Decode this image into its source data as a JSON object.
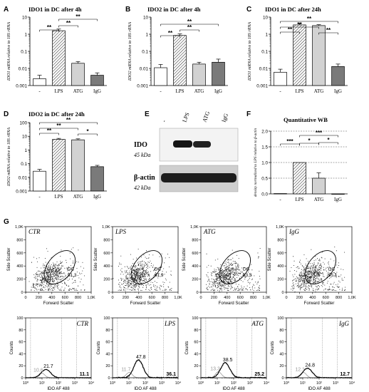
{
  "panels": {
    "A": {
      "letter": "A",
      "title": "IDO1 in DC after 4h"
    },
    "B": {
      "letter": "B",
      "title": "IDO2 in DC after 4h"
    },
    "C": {
      "letter": "C",
      "title": "IDO1 in DC after 24h"
    },
    "D": {
      "letter": "D",
      "title": "IDO2 in DC after 24h"
    },
    "E": {
      "letter": "E"
    },
    "F": {
      "letter": "F",
      "title": "Quantitative WB"
    },
    "G": {
      "letter": "G"
    }
  },
  "western_blot": {
    "lanes": [
      "-",
      "LPS",
      "ATG",
      "IgG"
    ],
    "rows": [
      {
        "label": "IDO",
        "size": "45 kDa"
      },
      {
        "label": "β-actin",
        "size": "42 kDa"
      }
    ]
  },
  "chart_data": [
    {
      "type": "bar",
      "panel": "A",
      "title": "IDO1 in DC after 4h",
      "ylabel": "IDO1 mRNA relative to 18S rRNA",
      "yscale": "log",
      "ylim": [
        0.001,
        10
      ],
      "yticks": [
        "0.001",
        "0.01",
        "0.1",
        "1",
        "10"
      ],
      "categories": [
        "-",
        "LPS",
        "ATG",
        "IgG"
      ],
      "values": [
        0.0025,
        1.6,
        0.02,
        0.004
      ],
      "errors": [
        0.0015,
        0.4,
        0.005,
        0.0015
      ],
      "significance": [
        {
          "from": "-",
          "to": "LPS",
          "label": "**"
        },
        {
          "from": "LPS",
          "to": "ATG",
          "label": "**"
        },
        {
          "from": "LPS",
          "to": "IgG",
          "label": "**"
        }
      ]
    },
    {
      "type": "bar",
      "panel": "B",
      "title": "IDO2 in DC after 4h",
      "ylabel": "IDO2 mRNA relative to 18S rRNA",
      "yscale": "log",
      "ylim": [
        0.001,
        10
      ],
      "yticks": [
        "0.001",
        "0.01",
        "0.1",
        "1",
        "10"
      ],
      "categories": [
        "-",
        "LPS",
        "ATG",
        "IgG"
      ],
      "values": [
        0.011,
        0.85,
        0.018,
        0.023
      ],
      "errors": [
        0.006,
        0.2,
        0.005,
        0.012
      ],
      "significance": [
        {
          "from": "-",
          "to": "LPS",
          "label": "**"
        },
        {
          "from": "LPS",
          "to": "ATG",
          "label": "**"
        },
        {
          "from": "-",
          "to": "IgG",
          "label": "**"
        }
      ]
    },
    {
      "type": "bar",
      "panel": "C",
      "title": "IDO1 in DC after 24h",
      "ylabel": "IDO1 mRNA relative to 18S rRNA",
      "yscale": "log",
      "ylim": [
        0.001,
        10
      ],
      "yticks": [
        "0.001",
        "0.01",
        "0.1",
        "1",
        "10"
      ],
      "categories": [
        "-",
        "LPS",
        "ATG",
        "IgG"
      ],
      "values": [
        0.006,
        3.5,
        3.2,
        0.013
      ],
      "errors": [
        0.003,
        0.8,
        0.4,
        0.005
      ],
      "significance": [
        {
          "from": "-",
          "to": "LPS",
          "label": "**"
        },
        {
          "from": "-",
          "to": "ATG",
          "label": "**"
        },
        {
          "from": "ATG",
          "to": "IgG",
          "label": "**"
        },
        {
          "from": "-",
          "to": "IgG",
          "label": "**"
        }
      ]
    },
    {
      "type": "bar",
      "panel": "D",
      "title": "IDO2 in DC after 24h",
      "ylabel": "IDO2 mRNA relative to 18S rRNA",
      "yscale": "log",
      "ylim": [
        0.001,
        100
      ],
      "yticks": [
        "0.001",
        "0.01",
        "0.1",
        "1",
        "10",
        "100"
      ],
      "categories": [
        "-",
        "LPS",
        "ATG",
        "IgG"
      ],
      "values": [
        0.028,
        6.0,
        5.5,
        0.06
      ],
      "errors": [
        0.01,
        1.0,
        1.0,
        0.015
      ],
      "significance": [
        {
          "from": "-",
          "to": "LPS",
          "label": "**"
        },
        {
          "from": "-",
          "to": "ATG",
          "label": "**"
        },
        {
          "from": "ATG",
          "to": "IgG",
          "label": "*"
        },
        {
          "from": "-",
          "to": "IgG",
          "label": "**"
        }
      ]
    },
    {
      "type": "bar",
      "panel": "F",
      "title": "Quantitative WB",
      "ylabel": "density normalized to LPS relative to β-actin",
      "yscale": "linear",
      "ylim": [
        0,
        2.0
      ],
      "yticks": [
        "0.0",
        "0.5",
        "1.0",
        "1.5",
        "2.0"
      ],
      "categories": [
        "-",
        "LPS",
        "ATG",
        "IgG"
      ],
      "values": [
        0.01,
        1.0,
        0.5,
        0.0
      ],
      "errors": [
        0.0,
        0.0,
        0.17,
        0.0
      ],
      "grid": "dashed horizontal",
      "significance": [
        {
          "from": "-",
          "to": "LPS",
          "label": "***"
        },
        {
          "from": "LPS",
          "to": "ATG",
          "label": "*"
        },
        {
          "from": "ATG",
          "to": "IgG",
          "label": "*"
        },
        {
          "from": "LPS",
          "to": "IgG",
          "label": "***"
        }
      ]
    },
    {
      "type": "scatter",
      "panel": "G",
      "xlabel": "Forward Scatter",
      "ylabel": "Side Scatter",
      "xlim": [
        0,
        1000
      ],
      "ylim": [
        0,
        1000
      ],
      "xticks": [
        "0",
        "200",
        "400",
        "600",
        "800",
        "1,0K"
      ],
      "yticks": [
        "0",
        "200",
        "400",
        "600",
        "800",
        "1,0K"
      ],
      "gate_label": "DC",
      "plots": [
        {
          "condition": "CTR",
          "gate_percent": "51,3"
        },
        {
          "condition": "LPS",
          "gate_percent": "61,9"
        },
        {
          "condition": "ATG",
          "gate_percent": "63,3"
        },
        {
          "condition": "IgG",
          "gate_percent": "55,1"
        }
      ]
    },
    {
      "type": "line",
      "panel": "G",
      "xlabel": "IDO AF 488",
      "ylabel": "Counts",
      "xscale": "log",
      "ylim": [
        0,
        100
      ],
      "yticks": [
        "0",
        "20",
        "40",
        "60",
        "80",
        "100"
      ],
      "xticks": [
        "10⁰",
        "10¹",
        "10²",
        "10³",
        "10⁴"
      ],
      "plots": [
        {
          "condition": "CTR",
          "isotype_mfi": "10.6",
          "stained_mfi": "21.7",
          "percent_positive": "11.1",
          "iso_peak": 8,
          "stain_peak": 14
        },
        {
          "condition": "LPS",
          "isotype_mfi": "11.7",
          "stained_mfi": "47.8",
          "percent_positive": "36.1",
          "iso_peak": 9,
          "stain_peak": 30
        },
        {
          "condition": "ATG",
          "isotype_mfi": "13.3",
          "stained_mfi": "38.5",
          "percent_positive": "25.2",
          "iso_peak": 10,
          "stain_peak": 25
        },
        {
          "condition": "IgG",
          "isotype_mfi": "12.1",
          "stained_mfi": "24.8",
          "percent_positive": "12.7",
          "iso_peak": 9,
          "stain_peak": 16
        }
      ]
    }
  ]
}
